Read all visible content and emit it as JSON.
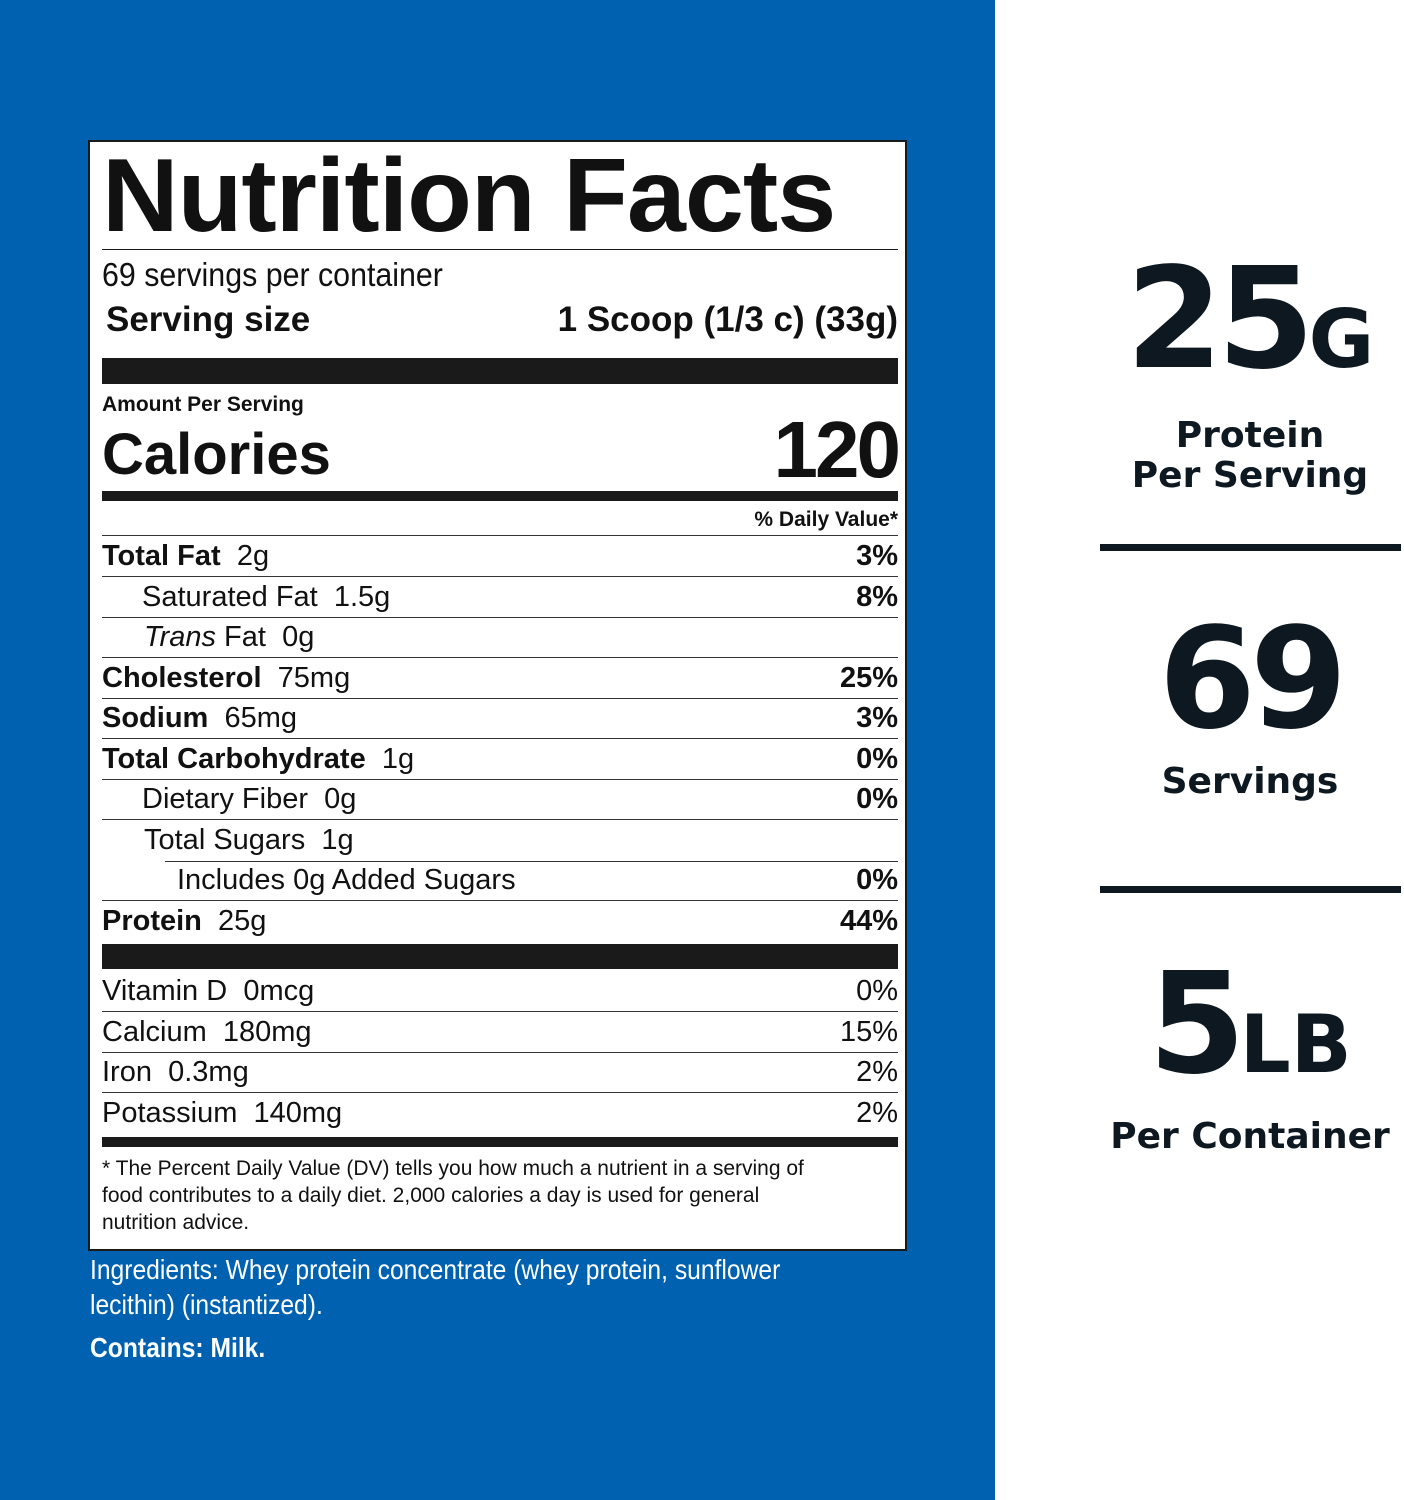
{
  "colors": {
    "background_blue": "#0061b0",
    "text_dark": "#0d1821"
  },
  "label": {
    "title": "Nutrition Facts",
    "servings_per_container": "69 servings per container",
    "serving_size_label": "Serving size",
    "serving_size_value": "1 Scoop (1/3 c) (33g)",
    "amount_per_serving": "Amount Per Serving",
    "calories_label": "Calories",
    "calories_value": "120",
    "dv_header": "% Daily Value*",
    "nutrients": [
      {
        "name": "Total Fat",
        "amount": "2g",
        "dv": "3%"
      },
      {
        "name": "Saturated Fat",
        "amount": "1.5g",
        "dv": "8%"
      },
      {
        "name": "Trans",
        "name2": "Fat",
        "amount": "0g",
        "dv": ""
      },
      {
        "name": "Cholesterol",
        "amount": "75mg",
        "dv": "25%"
      },
      {
        "name": "Sodium",
        "amount": "65mg",
        "dv": "3%"
      },
      {
        "name": "Total Carbohydrate",
        "amount": "1g",
        "dv": "0%"
      },
      {
        "name": "Dietary Fiber",
        "amount": "0g",
        "dv": "0%"
      },
      {
        "name": "Total Sugars",
        "amount": "1g",
        "dv": ""
      },
      {
        "name": "Includes 0g Added Sugars",
        "amount": "",
        "dv": "0%"
      },
      {
        "name": "Protein",
        "amount": "25g",
        "dv": "44%"
      }
    ],
    "vitamins": [
      {
        "name": "Vitamin D",
        "amount": "0mcg",
        "dv": "0%"
      },
      {
        "name": "Calcium",
        "amount": "180mg",
        "dv": "15%"
      },
      {
        "name": "Iron",
        "amount": "0.3mg",
        "dv": "2%"
      },
      {
        "name": "Potassium",
        "amount": "140mg",
        "dv": "2%"
      }
    ],
    "footnote": [
      "* The Percent Daily Value (DV) tells you how much a nutrient in a serving of",
      "food contributes to a daily diet. 2,000 calories a day is used for general",
      "nutrition advice."
    ]
  },
  "ingredients": {
    "lines": [
      "Ingredients: Whey protein concentrate (whey protein, sunflower",
      "lecithin) (instantized)."
    ],
    "contains": "Contains: Milk."
  },
  "stats": [
    {
      "number": "25",
      "unit": "G",
      "lines": [
        "Protein",
        "Per Serving"
      ]
    },
    {
      "number": "69",
      "unit": "",
      "lines": [
        "Servings"
      ]
    },
    {
      "number": "5",
      "unit": "LB",
      "lines": [
        "Per Container"
      ]
    }
  ]
}
